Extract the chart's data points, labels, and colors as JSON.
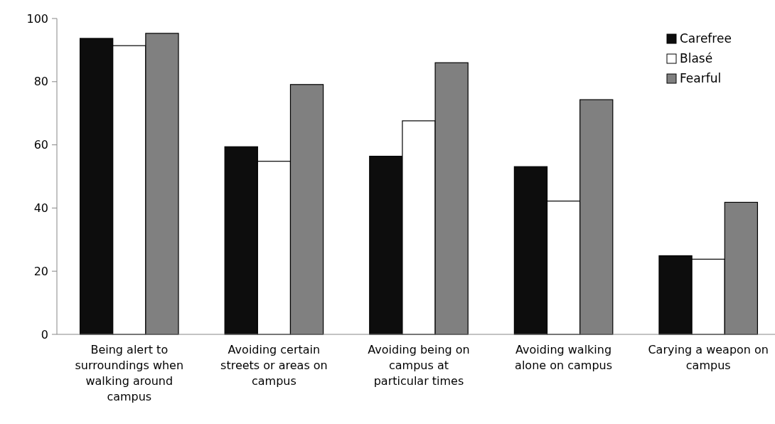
{
  "chart_data": {
    "type": "bar",
    "categories": [
      "Being alert to surroundings when walking around campus",
      "Avoiding certain streets or areas on campus",
      "Avoiding being on campus at particular times",
      "Avoiding walking alone on campus",
      "Carying a weapon on campus"
    ],
    "series": [
      {
        "name": "Carefree",
        "color": "#0d0d0d",
        "values": [
          93.7,
          59.4,
          56.4,
          53.1,
          24.9
        ]
      },
      {
        "name": "Blasé",
        "color": "#ffffff",
        "values": [
          91.4,
          54.8,
          67.6,
          42.2,
          23.8
        ]
      },
      {
        "name": "Fearful",
        "color": "#808080",
        "values": [
          95.3,
          79.1,
          86.0,
          74.3,
          41.8
        ]
      }
    ],
    "ylim": [
      0,
      100
    ],
    "yticks": [
      0,
      20,
      40,
      60,
      80,
      100
    ],
    "grid": false,
    "legend": "top right"
  }
}
